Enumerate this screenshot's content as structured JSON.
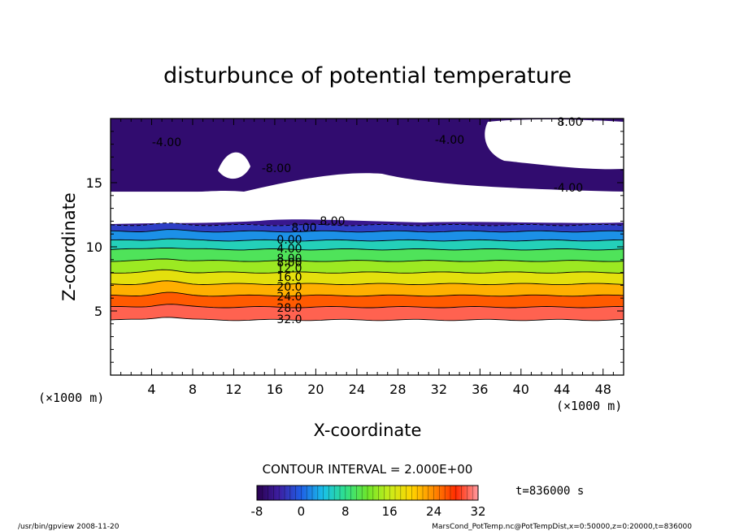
{
  "chart_data": {
    "type": "heatmap",
    "title": "disturbunce of potential temperature",
    "xlabel": "X-coordinate",
    "ylabel": "Z-coordinate",
    "x_unit": "(×1000 m)",
    "y_unit": "(×1000 m)",
    "xlim": [
      0,
      50
    ],
    "ylim": [
      0,
      20
    ],
    "x_ticks": [
      4,
      8,
      12,
      16,
      20,
      24,
      28,
      32,
      36,
      40,
      44,
      48
    ],
    "y_ticks": [
      5,
      10,
      15
    ],
    "contour_interval_text": "CONTOUR INTERVAL = 2.000E+00",
    "contour_labels": [
      "8.00",
      "-4.00",
      "-4.00",
      "-8.00",
      "8.00",
      "8.00",
      "-4.00",
      "8.00",
      "0.00",
      "4.00",
      "8.00",
      "12.0",
      "16.0",
      "20.0",
      "24.0",
      "28.0",
      "32.0"
    ],
    "colorbar": {
      "min": -8,
      "max": 32,
      "ticks": [
        -8,
        0,
        8,
        16,
        24,
        32
      ],
      "stops": [
        "#2a004f",
        "#3d1fa3",
        "#1f5fe6",
        "#19c0e8",
        "#2fe08a",
        "#6ee62a",
        "#c9ec1a",
        "#ffd400",
        "#ff8a00",
        "#ff2a00",
        "#ff9aa0"
      ]
    },
    "layers": [
      {
        "z": 4.3,
        "value": 32
      },
      {
        "z": 5.3,
        "value": 28
      },
      {
        "z": 6.2,
        "value": 24
      },
      {
        "z": 7.1,
        "value": 20
      },
      {
        "z": 8.0,
        "value": 16
      },
      {
        "z": 8.9,
        "value": 12
      },
      {
        "z": 9.8,
        "value": 8
      },
      {
        "z": 10.5,
        "value": 4
      },
      {
        "z": 11.2,
        "value": 0
      },
      {
        "z": 11.7,
        "value": -4
      }
    ],
    "time_label": "t=836000 s"
  },
  "footer": {
    "left": "/usr/bin/gpview  2008-11-20",
    "right": "MarsCond_PotTemp.nc@PotTempDist,x=0:50000,z=0:20000,t=836000"
  }
}
